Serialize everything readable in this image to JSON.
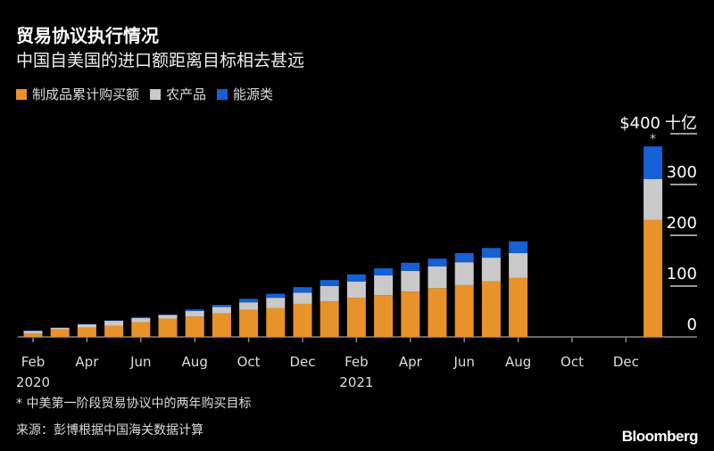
{
  "colors": {
    "manufactured": "#e8922a",
    "agriculture": "#c9c9c9",
    "energy": "#1560d4",
    "axis": "#888888"
  },
  "chart_data": {
    "type": "bar",
    "stacked": true,
    "title": "贸易协议执行情况",
    "subtitle": "中国自美国的进口额距离目标相去甚远",
    "legend": [
      "制成品累计购买额",
      "农产品",
      "能源类"
    ],
    "legend_placement": "top-left",
    "ylabel": "十亿",
    "yunit_prefix": "$",
    "ylim": [
      0,
      400
    ],
    "yticks": [
      0,
      100,
      200,
      300,
      400
    ],
    "ytick_labels": [
      "0",
      "100",
      "200",
      "300",
      "$400"
    ],
    "xtick_labels": [
      {
        "label": "Feb",
        "year": "2020",
        "index": 0
      },
      {
        "label": "Apr",
        "index": 2
      },
      {
        "label": "Jun",
        "index": 4
      },
      {
        "label": "Aug",
        "index": 6
      },
      {
        "label": "Oct",
        "index": 8
      },
      {
        "label": "Dec",
        "index": 10
      },
      {
        "label": "Feb",
        "year": "2021",
        "index": 12
      },
      {
        "label": "Apr",
        "index": 14
      },
      {
        "label": "Jun",
        "index": 16
      },
      {
        "label": "Aug",
        "index": 18
      },
      {
        "label": "Oct",
        "index": 20
      },
      {
        "label": "Dec",
        "index": 22
      }
    ],
    "categories": [
      "2020-02",
      "2020-03",
      "2020-04",
      "2020-05",
      "2020-06",
      "2020-07",
      "2020-08",
      "2020-09",
      "2020-10",
      "2020-11",
      "2020-12",
      "2021-01",
      "2021-02",
      "2021-03",
      "2021-04",
      "2021-05",
      "2021-06",
      "2021-07",
      "2021-08"
    ],
    "series": [
      {
        "name": "制成品累计购买额",
        "values": [
          7,
          15,
          18,
          22,
          29,
          36,
          40,
          46,
          53,
          57,
          65,
          70,
          77,
          82,
          89,
          96,
          102,
          109,
          116
        ]
      },
      {
        "name": "农产品",
        "values": [
          5,
          3,
          7,
          10,
          8,
          7,
          11,
          13,
          15,
          20,
          22,
          30,
          32,
          39,
          41,
          43,
          45,
          47,
          49
        ]
      },
      {
        "name": "能源类",
        "values": [
          0.5,
          0.5,
          0.5,
          0.5,
          2,
          1,
          3,
          4,
          7,
          8,
          11,
          12,
          14,
          14,
          16,
          15,
          18,
          19,
          23
        ]
      }
    ],
    "target": {
      "label": "*",
      "manufactured": 230,
      "agriculture": 81,
      "energy": 64
    }
  },
  "footnote": "* 中美第一阶段贸易协议中的两年购买目标",
  "source": "来源：彭博根据中国海关数据计算",
  "brand": "Bloomberg"
}
